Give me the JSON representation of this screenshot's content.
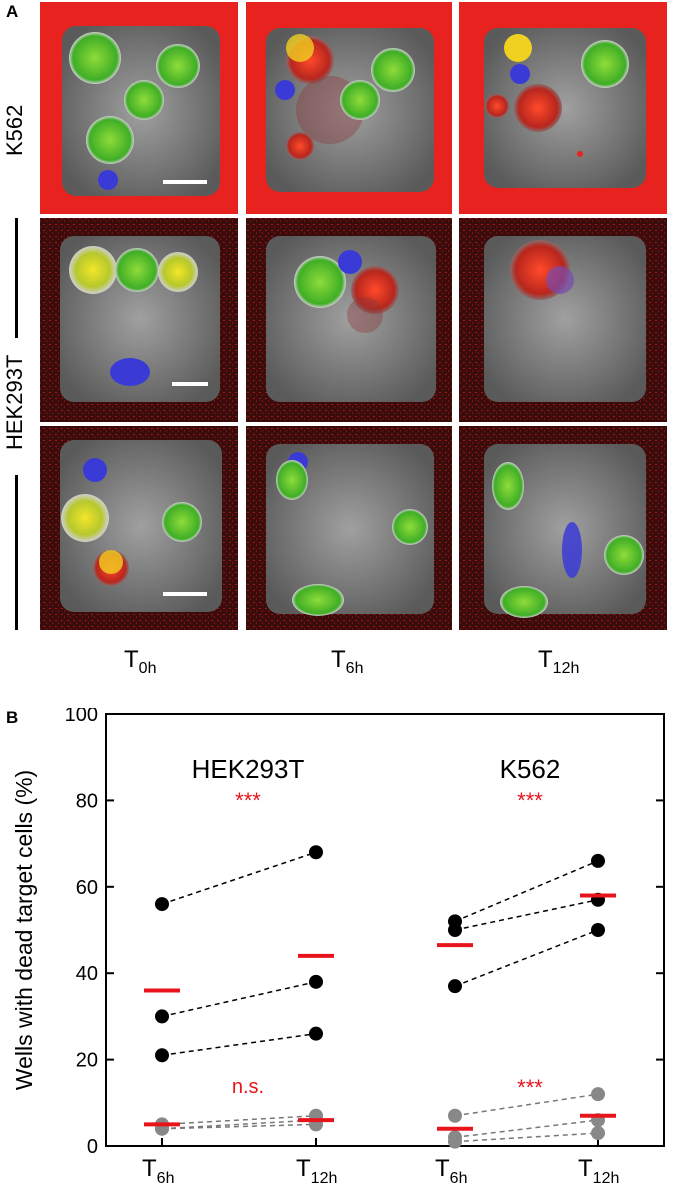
{
  "panel_a": {
    "label": "A",
    "rows": [
      "K562",
      "HEK293T"
    ],
    "cols": [
      {
        "main": "T",
        "sub": "0h"
      },
      {
        "main": "T",
        "sub": "6h"
      },
      {
        "main": "T",
        "sub": "12h"
      }
    ]
  },
  "panel_b": {
    "label": "B",
    "ylabel": "Wells with dead target cells (%)",
    "group_labels": [
      "HEK293T",
      "K562"
    ],
    "sig_labels": [
      "***",
      "n.s.",
      "***",
      "***"
    ],
    "x_ticks": [
      {
        "main": "T",
        "sub": "6h"
      },
      {
        "main": "T",
        "sub": "12h"
      },
      {
        "main": "T",
        "sub": "6h"
      },
      {
        "main": "T",
        "sub": "12h"
      }
    ],
    "y_ticks": [
      "0",
      "20",
      "40",
      "60",
      "80",
      "100"
    ]
  },
  "chart_data": {
    "type": "scatter",
    "ylim": [
      0,
      100
    ],
    "x_categories": [
      "T6h",
      "T12h",
      "T6h",
      "T12h"
    ],
    "series": [
      {
        "group": "HEK293T",
        "pairs": [
          [
            56,
            68
          ],
          [
            30,
            38
          ],
          [
            21,
            26
          ]
        ],
        "color": "#000000",
        "means": [
          36,
          44
        ]
      },
      {
        "group": "HEK293T",
        "pairs": [
          [
            5,
            7
          ],
          [
            4,
            6
          ],
          [
            4,
            5
          ]
        ],
        "color": "#888888",
        "means": [
          5,
          6
        ]
      },
      {
        "group": "K562",
        "pairs": [
          [
            52,
            66
          ],
          [
            50,
            57
          ],
          [
            37,
            50
          ]
        ],
        "color": "#000000",
        "means": [
          46.5,
          58
        ]
      },
      {
        "group": "K562",
        "pairs": [
          [
            7,
            12
          ],
          [
            2,
            6
          ],
          [
            1,
            3
          ]
        ],
        "color": "#888888",
        "means": [
          4,
          7
        ]
      }
    ],
    "mean_color": "#e8141b",
    "sig_color": "#e8141b"
  }
}
